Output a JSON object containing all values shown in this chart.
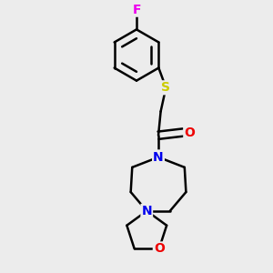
{
  "background_color": "#ececec",
  "atom_colors": {
    "C": "#000000",
    "N": "#0000ee",
    "O": "#ee0000",
    "S": "#cccc00",
    "F": "#ee00ee"
  },
  "bond_color": "#000000",
  "bond_width": 1.8,
  "font_size": 10
}
